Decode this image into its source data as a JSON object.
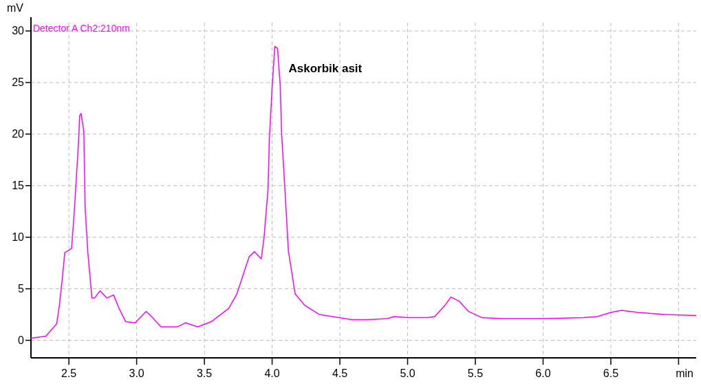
{
  "chart_data": {
    "type": "line",
    "xlabel": "min",
    "ylabel": "mV",
    "legend": "top left",
    "grid": true,
    "xlim": [
      2.22,
      7.13
    ],
    "ylim": [
      -1.7,
      30.8
    ],
    "xticks": [
      2.5,
      {
        "value": 3,
        "label": "3.0"
      },
      3.5,
      {
        "value": 4,
        "label": "4.0"
      },
      4.5,
      {
        "value": 5,
        "label": "5.0"
      },
      5.5,
      {
        "value": 6,
        "label": "6.0"
      },
      6.5,
      {
        "value": 7,
        "label": null
      }
    ],
    "yticks": [
      0,
      5,
      10,
      15,
      20,
      25,
      30
    ],
    "annotations": [
      {
        "text": "Askorbik asit",
        "x": 4.03,
        "y": 28.5
      }
    ],
    "series": [
      {
        "name": "Detector A Ch2:210nm",
        "color": "#ff00ff",
        "x": [
          2.22,
          2.33,
          2.41,
          2.43,
          2.45,
          2.47,
          2.52,
          2.54,
          2.57,
          2.58,
          2.59,
          2.61,
          2.62,
          2.64,
          2.67,
          2.69,
          2.73,
          2.78,
          2.83,
          2.87,
          2.92,
          2.99,
          3.07,
          3.11,
          3.18,
          3.3,
          3.36,
          3.45,
          3.55,
          3.62,
          3.68,
          3.74,
          3.83,
          3.87,
          3.92,
          3.94,
          3.97,
          3.98,
          4.0,
          4.02,
          4.04,
          4.06,
          4.07,
          4.1,
          4.12,
          4.17,
          4.24,
          4.35,
          4.59,
          4.7,
          4.85,
          4.9,
          5.0,
          5.15,
          5.2,
          5.27,
          5.32,
          5.38,
          5.45,
          5.55,
          5.7,
          6.0,
          6.3,
          6.4,
          6.5,
          6.58,
          6.7,
          6.9,
          7.13
        ],
        "values": [
          0.2,
          0.4,
          1.6,
          3.4,
          5.8,
          8.5,
          8.9,
          12.5,
          18.9,
          21.8,
          22.0,
          20.3,
          12.9,
          8.5,
          4.1,
          4.1,
          4.8,
          4.1,
          4.4,
          3.1,
          1.8,
          1.7,
          2.8,
          2.3,
          1.3,
          1.3,
          1.7,
          1.3,
          1.8,
          2.5,
          3.1,
          4.5,
          8.1,
          8.6,
          7.9,
          9.9,
          14.7,
          19.6,
          24.5,
          28.5,
          28.3,
          24.7,
          20.1,
          13.4,
          8.7,
          4.5,
          3.4,
          2.5,
          2.0,
          2.0,
          2.1,
          2.3,
          2.2,
          2.2,
          2.3,
          3.3,
          4.2,
          3.8,
          2.8,
          2.2,
          2.1,
          2.1,
          2.2,
          2.3,
          2.7,
          2.9,
          2.7,
          2.5,
          2.4
        ]
      }
    ]
  }
}
